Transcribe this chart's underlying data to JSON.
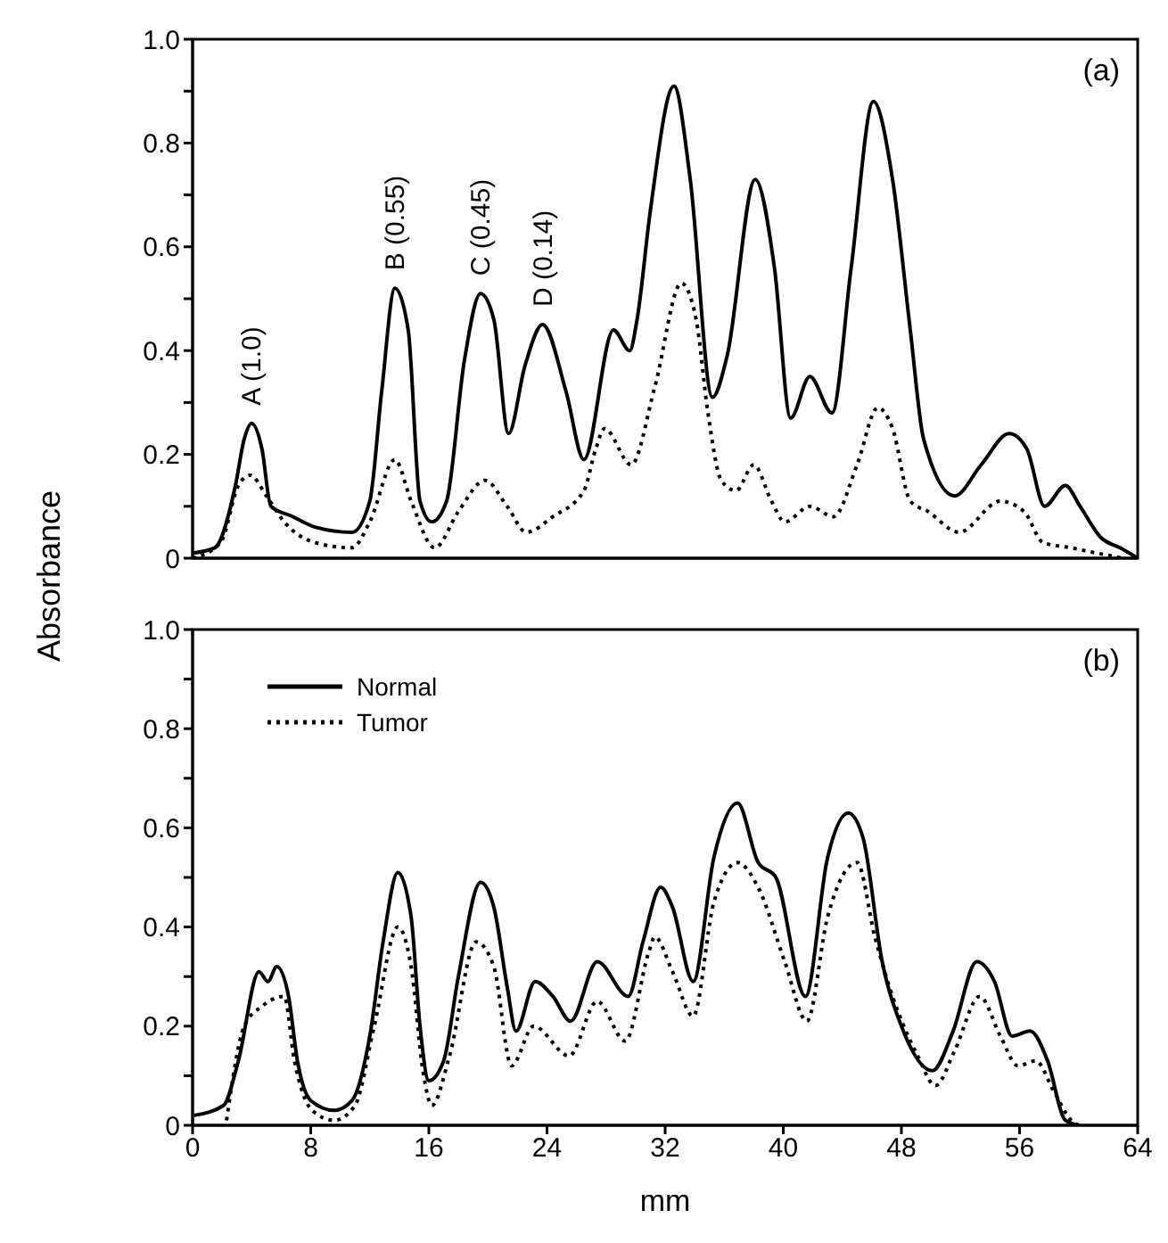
{
  "chart_data": [
    {
      "type": "line",
      "ylabel": "Absorbance",
      "xlim": [
        0,
        64
      ],
      "ylim": [
        0,
        1
      ],
      "xticks": [
        0,
        8,
        16,
        24,
        32,
        40,
        48,
        56,
        64
      ],
      "yticks": [
        0,
        {
          "value": 0.1,
          "label": null
        },
        0.2,
        {
          "value": 0.3,
          "label": null
        },
        0.4,
        {
          "value": 0.5,
          "label": null
        },
        0.6,
        {
          "value": 0.7,
          "label": null
        },
        0.8,
        {
          "value": 0.9,
          "label": null
        },
        {
          "value": 1,
          "label": "1.0"
        }
      ],
      "tick_labels": "y",
      "grid": false,
      "legend": false,
      "marker": "none",
      "annotations": [
        "(a)",
        {
          "text": "A (1.0)",
          "x": 4,
          "y": 0.26
        },
        {
          "text": "B (0.55)",
          "x": 13.7,
          "y": 0.52
        },
        {
          "text": "C (0.45)",
          "x": 19.5,
          "y": 0.51
        },
        {
          "text": "D (0.14)",
          "x": 23.7,
          "y": 0.45
        }
      ],
      "series": [
        {
          "color": "#000000",
          "line_style": "solid",
          "x": [
            0,
            1.5,
            2.9,
            3.5,
            4.0,
            4.7,
            5.3,
            6.8,
            8.3,
            10.8,
            12.0,
            12.8,
            13.7,
            14.6,
            15.4,
            16.2,
            17.2,
            18.4,
            19.5,
            20.4,
            21.4,
            22.5,
            23.7,
            25.3,
            26.5,
            28.5,
            29.6,
            30.1,
            31.0,
            32.6,
            33.7,
            35.2,
            36.2,
            38.1,
            39.4,
            40.5,
            41.8,
            43.3,
            44.6,
            46.1,
            47.4,
            48.6,
            49.5,
            51.6,
            53.4,
            55.3,
            56.5,
            57.7,
            59.1,
            60.1,
            61.5,
            62.8,
            64
          ],
          "values": [
            0.01,
            0.02,
            0.14,
            0.23,
            0.26,
            0.21,
            0.1,
            0.08,
            0.06,
            0.05,
            0.11,
            0.32,
            0.52,
            0.44,
            0.11,
            0.07,
            0.11,
            0.38,
            0.51,
            0.46,
            0.24,
            0.37,
            0.45,
            0.32,
            0.19,
            0.44,
            0.4,
            0.46,
            0.67,
            0.91,
            0.73,
            0.31,
            0.39,
            0.73,
            0.56,
            0.27,
            0.35,
            0.28,
            0.56,
            0.88,
            0.73,
            0.44,
            0.23,
            0.12,
            0.18,
            0.24,
            0.21,
            0.1,
            0.14,
            0.1,
            0.04,
            0.02,
            0
          ]
        },
        {
          "color": "#000000",
          "line_style": "dotted",
          "x": [
            0,
            1.9,
            3.1,
            3.9,
            5.0,
            6.2,
            8.3,
            10.8,
            12.0,
            13.7,
            14.8,
            16.4,
            18.0,
            19.8,
            21.3,
            22.6,
            24.4,
            26.5,
            27.3,
            27.9,
            29.7,
            31.3,
            33.1,
            34.1,
            34.9,
            35.8,
            36.8,
            38.0,
            39.2,
            40.1,
            41.8,
            43.4,
            45.0,
            46.4,
            47.4,
            48.6,
            49.8,
            51.9,
            54.7,
            56.3,
            57.6,
            59.5,
            61.2,
            63
          ],
          "values": [
            0,
            0.03,
            0.14,
            0.16,
            0.12,
            0.07,
            0.03,
            0.02,
            0.07,
            0.19,
            0.11,
            0.02,
            0.09,
            0.15,
            0.1,
            0.05,
            0.08,
            0.13,
            0.21,
            0.25,
            0.18,
            0.33,
            0.53,
            0.46,
            0.28,
            0.15,
            0.13,
            0.18,
            0.11,
            0.07,
            0.1,
            0.08,
            0.18,
            0.29,
            0.25,
            0.11,
            0.09,
            0.05,
            0.11,
            0.09,
            0.03,
            0.02,
            0.01,
            0
          ]
        }
      ]
    },
    {
      "type": "line",
      "xlabel": "mm",
      "xlim": [
        0,
        64
      ],
      "ylim": [
        0,
        1
      ],
      "xticks": [
        0,
        8,
        16,
        24,
        32,
        40,
        48,
        56,
        64
      ],
      "yticks": [
        0,
        {
          "value": 0.1,
          "label": null
        },
        0.2,
        {
          "value": 0.3,
          "label": null
        },
        0.4,
        {
          "value": 0.5,
          "label": null
        },
        0.6,
        {
          "value": 0.7,
          "label": null
        },
        0.8,
        {
          "value": 0.9,
          "label": null
        },
        {
          "value": 1,
          "label": "1.0"
        }
      ],
      "grid": false,
      "legend": "top left",
      "marker": "none",
      "annotations": [
        "(b)"
      ],
      "series": [
        {
          "name": "Normal",
          "color": "#000000",
          "line_style": "solid",
          "x": [
            0.1,
            2.1,
            3.1,
            4.5,
            5.1,
            5.7,
            6.5,
            7.1,
            8.0,
            9.6,
            10.8,
            12.0,
            12.9,
            13.9,
            14.8,
            15.4,
            16.0,
            17.0,
            18.0,
            19.5,
            20.4,
            21.3,
            21.9,
            23.2,
            24.4,
            25.6,
            27.4,
            29.5,
            30.5,
            31.7,
            32.5,
            33.9,
            35.3,
            36.9,
            38.3,
            39.5,
            41.5,
            43.0,
            44.4,
            45.4,
            46.7,
            48.0,
            50.1,
            51.5,
            53.1,
            54.3,
            55.5,
            56.7,
            57.9,
            59.1,
            60
          ],
          "values": [
            0.02,
            0.04,
            0.13,
            0.31,
            0.29,
            0.32,
            0.26,
            0.13,
            0.05,
            0.03,
            0.05,
            0.18,
            0.37,
            0.51,
            0.42,
            0.2,
            0.09,
            0.13,
            0.3,
            0.49,
            0.44,
            0.28,
            0.19,
            0.29,
            0.26,
            0.21,
            0.33,
            0.26,
            0.37,
            0.48,
            0.44,
            0.29,
            0.54,
            0.65,
            0.53,
            0.5,
            0.26,
            0.54,
            0.63,
            0.58,
            0.33,
            0.2,
            0.11,
            0.19,
            0.33,
            0.29,
            0.18,
            0.19,
            0.13,
            0.01,
            0
          ]
        },
        {
          "name": "Tumor",
          "color": "#000000",
          "line_style": "dotted",
          "x": [
            2.3,
            3.5,
            4.7,
            6.2,
            6.9,
            8.1,
            9.6,
            11.0,
            12.3,
            13.9,
            14.8,
            15.6,
            16.2,
            17.4,
            19.2,
            20.4,
            21.6,
            23.1,
            25.5,
            27.4,
            29.3,
            30.9,
            31.3,
            32.5,
            33.9,
            35.3,
            36.9,
            38.3,
            40.1,
            41.6,
            43.0,
            45.0,
            46.2,
            47.4,
            49.1,
            50.3,
            51.6,
            53.3,
            54.7,
            55.9,
            57.1,
            58.3,
            59.5,
            60
          ],
          "values": [
            0.01,
            0.2,
            0.24,
            0.26,
            0.13,
            0.03,
            0.01,
            0.04,
            0.2,
            0.4,
            0.32,
            0.11,
            0.04,
            0.14,
            0.37,
            0.32,
            0.12,
            0.2,
            0.14,
            0.25,
            0.17,
            0.35,
            0.38,
            0.31,
            0.22,
            0.45,
            0.53,
            0.48,
            0.33,
            0.21,
            0.42,
            0.53,
            0.38,
            0.26,
            0.14,
            0.08,
            0.15,
            0.26,
            0.18,
            0.12,
            0.13,
            0.07,
            0.01,
            0
          ]
        }
      ]
    }
  ]
}
